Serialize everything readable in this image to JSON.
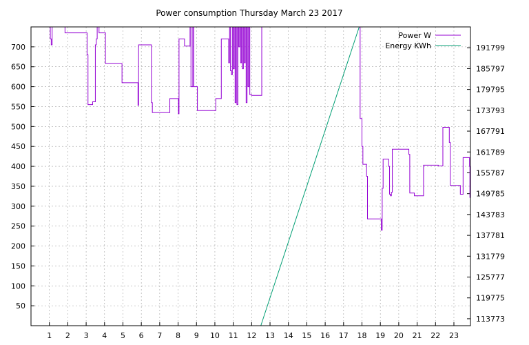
{
  "chart_data": {
    "type": "line",
    "title": "Power consumption Thursday March 23 2017",
    "xlabel": "",
    "ylabel": "",
    "x_range": [
      0,
      23.9
    ],
    "xticks": [
      1,
      2,
      3,
      4,
      5,
      6,
      7,
      8,
      9,
      10,
      11,
      12,
      13,
      14,
      15,
      16,
      17,
      18,
      19,
      20,
      21,
      22,
      23
    ],
    "y_range": [
      0,
      750
    ],
    "yticks": [
      50,
      100,
      150,
      200,
      250,
      300,
      350,
      400,
      450,
      500,
      550,
      600,
      650,
      700
    ],
    "y2_range": [
      111772,
      197800
    ],
    "y2ticks": [
      113773,
      119775,
      125777,
      131779,
      137781,
      143783,
      149785,
      155787,
      161789,
      167791,
      173793,
      179795,
      185797,
      191799
    ],
    "grid": true,
    "legend_position": "top-right",
    "series": [
      {
        "name": "Power W",
        "color": "#9400d3",
        "axis": "y",
        "step": true,
        "points": [
          [
            1.0,
            750
          ],
          [
            1.05,
            720
          ],
          [
            1.1,
            705
          ],
          [
            1.15,
            750
          ],
          [
            1.8,
            750
          ],
          [
            1.85,
            735
          ],
          [
            3.0,
            735
          ],
          [
            3.05,
            680
          ],
          [
            3.1,
            555
          ],
          [
            3.3,
            555
          ],
          [
            3.35,
            562
          ],
          [
            3.45,
            562
          ],
          [
            3.5,
            705
          ],
          [
            3.55,
            720
          ],
          [
            3.6,
            750
          ],
          [
            3.7,
            735
          ],
          [
            4.0,
            735
          ],
          [
            4.05,
            658
          ],
          [
            4.9,
            658
          ],
          [
            4.95,
            610
          ],
          [
            5.8,
            610
          ],
          [
            5.82,
            553
          ],
          [
            5.85,
            705
          ],
          [
            6.5,
            705
          ],
          [
            6.55,
            560
          ],
          [
            6.6,
            535
          ],
          [
            7.5,
            535
          ],
          [
            7.55,
            570
          ],
          [
            8.0,
            570
          ],
          [
            8.02,
            532
          ],
          [
            8.05,
            720
          ],
          [
            8.3,
            720
          ],
          [
            8.35,
            702
          ],
          [
            8.6,
            702
          ],
          [
            8.65,
            750
          ],
          [
            8.7,
            600
          ],
          [
            8.8,
            750
          ],
          [
            8.85,
            600
          ],
          [
            9.0,
            600
          ],
          [
            9.05,
            540
          ],
          [
            10.0,
            540
          ],
          [
            10.05,
            570
          ],
          [
            10.3,
            570
          ],
          [
            10.35,
            720
          ],
          [
            10.7,
            720
          ],
          [
            10.75,
            660
          ],
          [
            10.8,
            750
          ],
          [
            10.85,
            640
          ],
          [
            10.9,
            630
          ],
          [
            10.95,
            750
          ],
          [
            11.0,
            645
          ],
          [
            11.05,
            750
          ],
          [
            11.1,
            560
          ],
          [
            11.15,
            750
          ],
          [
            11.2,
            555
          ],
          [
            11.25,
            750
          ],
          [
            11.3,
            700
          ],
          [
            11.35,
            750
          ],
          [
            11.4,
            660
          ],
          [
            11.45,
            750
          ],
          [
            11.5,
            645
          ],
          [
            11.55,
            750
          ],
          [
            11.6,
            660
          ],
          [
            11.65,
            750
          ],
          [
            11.7,
            560
          ],
          [
            11.75,
            750
          ],
          [
            11.8,
            600
          ],
          [
            11.85,
            750
          ],
          [
            11.9,
            580
          ],
          [
            12.0,
            578
          ],
          [
            12.5,
            578
          ],
          [
            12.55,
            750
          ],
          [
            17.85,
            750
          ],
          [
            17.9,
            520
          ],
          [
            18.0,
            450
          ],
          [
            18.05,
            405
          ],
          [
            18.2,
            405
          ],
          [
            18.25,
            375
          ],
          [
            18.3,
            268
          ],
          [
            19.0,
            268
          ],
          [
            19.05,
            240
          ],
          [
            19.1,
            345
          ],
          [
            19.15,
            418
          ],
          [
            19.4,
            418
          ],
          [
            19.45,
            400
          ],
          [
            19.5,
            330
          ],
          [
            19.55,
            326
          ],
          [
            19.6,
            335
          ],
          [
            19.65,
            443
          ],
          [
            20.5,
            443
          ],
          [
            20.55,
            430
          ],
          [
            20.6,
            333
          ],
          [
            20.8,
            333
          ],
          [
            20.85,
            326
          ],
          [
            21.3,
            326
          ],
          [
            21.35,
            403
          ],
          [
            22.1,
            403
          ],
          [
            22.15,
            401
          ],
          [
            22.35,
            401
          ],
          [
            22.4,
            498
          ],
          [
            22.7,
            498
          ],
          [
            22.75,
            460
          ],
          [
            22.8,
            352
          ],
          [
            23.3,
            352
          ],
          [
            23.35,
            330
          ],
          [
            23.45,
            330
          ],
          [
            23.5,
            422
          ],
          [
            23.8,
            422
          ],
          [
            23.85,
            400
          ],
          [
            23.87,
            322
          ],
          [
            23.9,
            420
          ]
        ]
      },
      {
        "name": "Energy KWh",
        "color": "#009e73",
        "axis": "y2",
        "step": false,
        "points": [
          [
            12.5,
            111772
          ],
          [
            17.85,
            197800
          ]
        ]
      }
    ]
  }
}
